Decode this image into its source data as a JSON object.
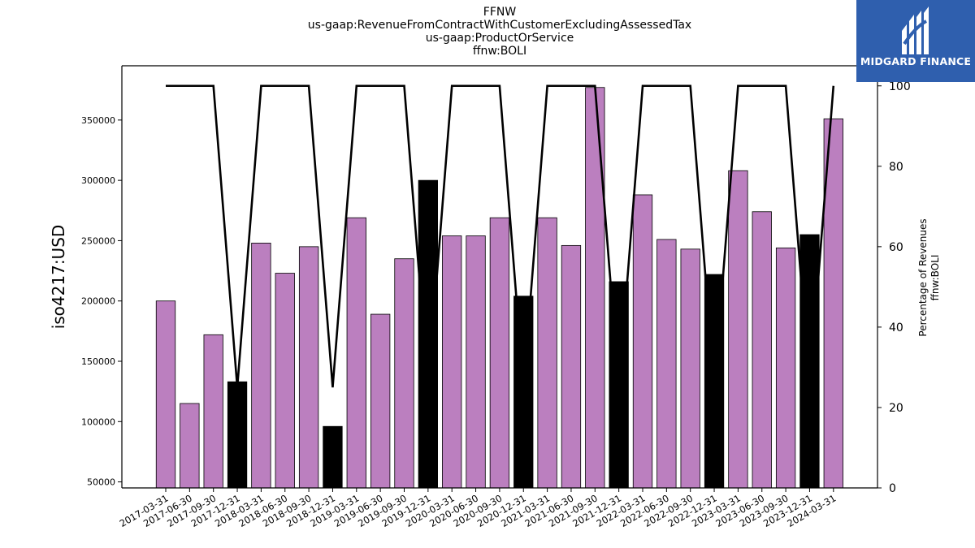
{
  "header": {
    "title_lines": [
      "FFNW",
      "us-gaap:RevenueFromContractWithCustomerExcludingAssessedTax",
      "us-gaap:ProductOrService",
      "ffnw:BOLI"
    ]
  },
  "logo": {
    "text": "MIDGARD FINANCE",
    "background": "#2f5fae"
  },
  "chart_data": {
    "type": "bar",
    "categories": [
      "2017-03-31",
      "2017-06-30",
      "2017-09-30",
      "2017-12-31",
      "2018-03-31",
      "2018-06-30",
      "2018-09-30",
      "2018-12-31",
      "2019-03-31",
      "2019-06-30",
      "2019-09-30",
      "2019-12-31",
      "2020-03-31",
      "2020-06-30",
      "2020-09-30",
      "2020-12-31",
      "2021-03-31",
      "2021-06-30",
      "2021-09-30",
      "2021-12-31",
      "2022-03-31",
      "2022-06-30",
      "2022-09-30",
      "2022-12-31",
      "2023-03-31",
      "2023-06-30",
      "2023-09-30",
      "2023-12-31",
      "2024-03-31"
    ],
    "values": [
      200000,
      115000,
      172000,
      133000,
      248000,
      223000,
      245000,
      96000,
      269000,
      189000,
      235000,
      300000,
      254000,
      254000,
      269000,
      204000,
      269000,
      246000,
      377000,
      216000,
      288000,
      251000,
      243000,
      222000,
      308000,
      274000,
      244000,
      255000,
      351000
    ],
    "bar_colors": [
      "#bb7fbf",
      "#bb7fbf",
      "#bb7fbf",
      "#000000",
      "#bb7fbf",
      "#bb7fbf",
      "#bb7fbf",
      "#000000",
      "#bb7fbf",
      "#bb7fbf",
      "#bb7fbf",
      "#000000",
      "#bb7fbf",
      "#bb7fbf",
      "#bb7fbf",
      "#000000",
      "#bb7fbf",
      "#bb7fbf",
      "#bb7fbf",
      "#000000",
      "#bb7fbf",
      "#bb7fbf",
      "#bb7fbf",
      "#000000",
      "#bb7fbf",
      "#bb7fbf",
      "#bb7fbf",
      "#000000",
      "#bb7fbf"
    ],
    "percentage_line": [
      100,
      100,
      100,
      25,
      100,
      100,
      100,
      25,
      100,
      100,
      100,
      25,
      100,
      100,
      100,
      25,
      100,
      100,
      100,
      25,
      100,
      100,
      100,
      25,
      100,
      100,
      100,
      25,
      100
    ],
    "ylabel": "iso4217:USD",
    "y2label_lines": [
      "Percentage of Revenues",
      "ffnw:BOLI"
    ],
    "ylim": [
      45000,
      395000
    ],
    "y2lim": [
      0,
      105
    ],
    "yticks": [
      50000,
      100000,
      150000,
      200000,
      250000,
      300000,
      350000
    ],
    "y2ticks": [
      0,
      20,
      40,
      60,
      80,
      100
    ],
    "grid": false,
    "legend": "none",
    "colors": {
      "bar": "#bb7fbf",
      "highlight_bar": "#000000",
      "line": "#000000"
    }
  }
}
